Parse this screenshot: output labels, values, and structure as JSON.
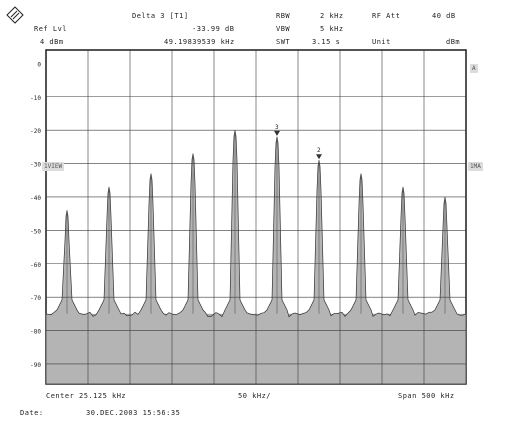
{
  "header": {
    "marker_title": "Delta 3 [T1]",
    "ref_lvl_label": "Ref Lvl",
    "ref_lvl_value": "4 dBm",
    "delta_level": "-33.99 dB",
    "delta_freq": "49.19839539 kHz",
    "rbw_label": "RBW",
    "rbw_value": "2 kHz",
    "vbw_label": "VBW",
    "vbw_value": "5 kHz",
    "swt_label": "SWT",
    "swt_value": "3.15 s",
    "rf_att_label": "RF Att",
    "rf_att_value": "40 dB",
    "unit_label": "Unit",
    "unit_value": "dBm"
  },
  "side_tags": {
    "right_top": "A",
    "right_mid": "1MA",
    "left_mid": "1VIEW"
  },
  "markers": {
    "m3_label": "3",
    "m2_label": "2"
  },
  "footer": {
    "center": "Center 25.125 kHz",
    "div": "50 kHz/",
    "span": "Span 500 kHz",
    "date_label": "Date:",
    "date_value": "30.DEC.2003  15:56:35"
  },
  "colors": {
    "trace_fill": "#b4b4b4",
    "noise_fill": "#a8a8a8",
    "grid": "#3a3a3a",
    "frame": "#1a1a1a"
  },
  "chart_data": {
    "type": "area",
    "x_unit": "kHz",
    "y_unit": "dBm",
    "ylim": [
      -96,
      4
    ],
    "y_ticks": [
      "0",
      "-10",
      "-20",
      "-30",
      "-40",
      "-50",
      "-60",
      "-70",
      "-80",
      "-90"
    ],
    "series": [
      {
        "peaks_dbm": [
          -44,
          -37,
          -33,
          -27,
          -20,
          -22,
          -29,
          -33,
          -37,
          -40
        ],
        "noise_floor_dbm": -75
      }
    ]
  }
}
